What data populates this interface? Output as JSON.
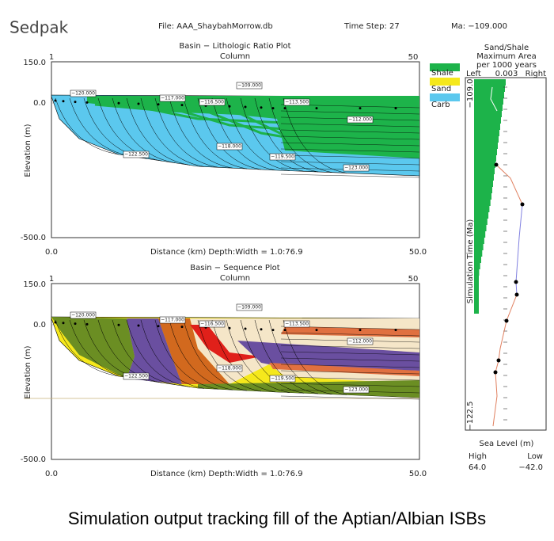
{
  "header": {
    "app": "Sedpak",
    "file": "File: AAA_ShaybahMorrow.db",
    "time_step": "Time Step:  27",
    "ma": "Ma: −109.000"
  },
  "panels": [
    {
      "title": "Basin − Lithologic Ratio Plot",
      "subtitle": "Column",
      "col_start": "1",
      "col_end": "50",
      "y_labels": [
        "150.0",
        "0.0",
        "-500.0"
      ],
      "y_axis": "Elevation (m)",
      "x_labels": [
        "0.0",
        "50.0"
      ],
      "x_axis": "Distance (km)   Depth:Width = 1.0:76.9",
      "time_labels": [
        "−120.000",
        "−117.000",
        "−109.000",
        "−116.500",
        "−113.500",
        "−112.000",
        "−118.000",
        "−119.500",
        "−122.500",
        "−123.000"
      ]
    },
    {
      "title": "Basin − Sequence Plot",
      "subtitle": "Column",
      "col_start": "1",
      "col_end": "50",
      "y_labels": [
        "150.0",
        "0.0",
        "-500.0"
      ],
      "y_axis": "Elevation (m)",
      "x_labels": [
        "0.0",
        "50.0"
      ],
      "x_axis": "Distance (km)   Depth:Width = 1.0:76.9",
      "time_labels": [
        "−120.000",
        "−117.000",
        "−109.000",
        "−116.500",
        "−113.500",
        "−112.000",
        "−118.000",
        "−119.500",
        "−122.500",
        "−123.000"
      ]
    }
  ],
  "legend": [
    "Shale",
    "Sand",
    "Carb"
  ],
  "side": {
    "title": [
      "Sand/Shale",
      "Maximum Area",
      "per 1000 years"
    ],
    "left": "Left",
    "scale": "0.003",
    "right": "Right",
    "top_time": "−109.0",
    "axis": "Simulation Time (Ma)",
    "bottom_time": "−122.5",
    "sea_level": "Sea Level (m)",
    "high": "High",
    "low": "Low",
    "high_value": "64.0",
    "low_value": "−42.0"
  },
  "caption": "Simulation output tracking fill of the Aptian/Albian ISBs"
}
